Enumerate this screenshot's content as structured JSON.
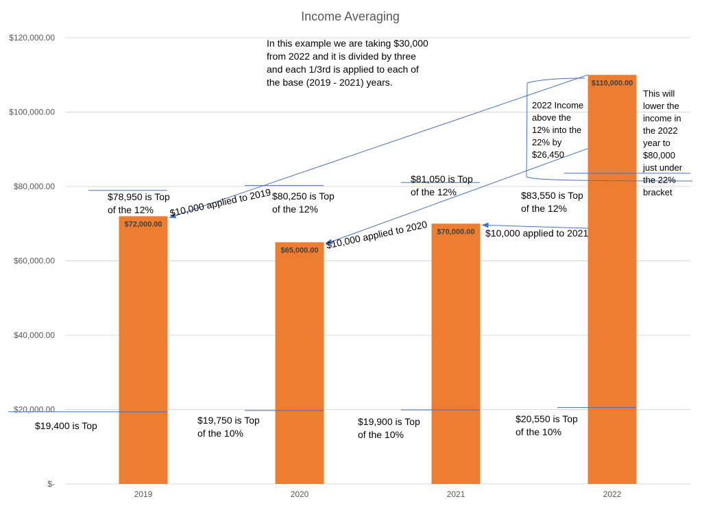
{
  "chart_data": {
    "type": "bar",
    "title": "Income Averaging",
    "categories": [
      "2019",
      "2020",
      "2021",
      "2022"
    ],
    "values": [
      72000,
      65000,
      70000,
      110000
    ],
    "value_labels": [
      "$72,000.00",
      "$65,000.00",
      "$70,000.00",
      "$110,000.00"
    ],
    "ylim": [
      0,
      120000
    ],
    "yticks": [
      0,
      20000,
      40000,
      60000,
      80000,
      100000,
      120000
    ],
    "ytick_labels": [
      "$-",
      "$20,000.00",
      "$40,000.00",
      "$60,000.00",
      "$80,000.00",
      "$100,000.00",
      "$120,000.00"
    ],
    "grid": true,
    "legend": "none",
    "bar_color": "#ED7D31",
    "annotation_line_color": "#4472C4",
    "threshold_lines": [
      {
        "year": "2019",
        "bracket": "12%",
        "value": 78950
      },
      {
        "year": "2020",
        "bracket": "12%",
        "value": 80250
      },
      {
        "year": "2021",
        "bracket": "12%",
        "value": 81050
      },
      {
        "year": "2022",
        "bracket": "12%",
        "value": 83550
      },
      {
        "year": "2019",
        "bracket": "10%",
        "value": 19400
      },
      {
        "year": "2020",
        "bracket": "10%",
        "value": 19750
      },
      {
        "year": "2021",
        "bracket": "10%",
        "value": 19900
      },
      {
        "year": "2022",
        "bracket": "10%",
        "value": 20550
      }
    ],
    "annotations": {
      "intro": "In this example we are taking $30,000\nfrom 2022 and it is divided by three\nand each 1/3rd is applied to each of\nthe base (2019 - 2021) years.",
      "top12_2019": "$78,950 is Top\nof the 12%",
      "top12_2020": "$80,250 is Top\nof the 12%",
      "top12_2021": "$81,050 is Top\nof the 12%",
      "top12_2022": "$83,550 is Top\nof the 12%",
      "top10_2019": "$19,400 is Top",
      "top10_2020": "$19,750 is Top\nof the 10%",
      "top10_2021": "$19,900 is Top\nof the 10%",
      "top10_2022": "$20,550 is Top\nof the 10%",
      "applied_2019": "$10,000 applied to 2019",
      "applied_2020": "$10,000 applied to 2020",
      "applied_2021": "$10,000 applied to 2021",
      "income_above": "2022 Income\nabove the\n12% into the\n22% by\n$26,450",
      "lower_note": "This will\nlower the\nincome in\nthe 2022\nyear to\n$80,000\njust under\nthe 22%\nbracket"
    }
  }
}
